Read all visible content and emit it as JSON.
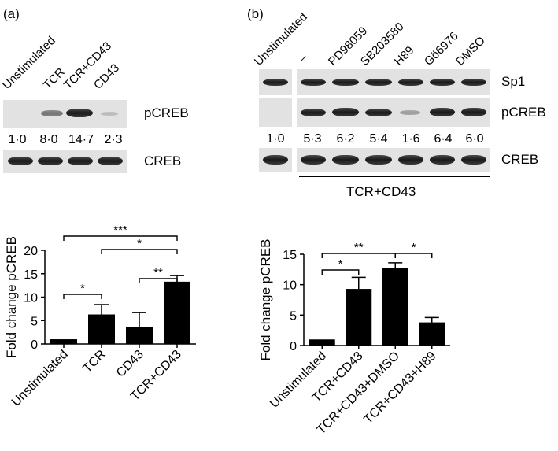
{
  "panel_a": {
    "label": "(a)",
    "lanes": [
      "Unstimulated",
      "TCR",
      "TCR+CD43",
      "CD43"
    ],
    "blot_rows": [
      "pCREB",
      "CREB"
    ],
    "quantification": [
      "1·0",
      "8·0",
      "14·7",
      "2·3"
    ]
  },
  "panel_b": {
    "label": "(b)",
    "lanes": [
      "Unstimulated",
      "–",
      "PD98059",
      "SB203580",
      "H89",
      "Gö6976",
      "DMSO"
    ],
    "blot_rows": [
      "Sp1",
      "pCREB",
      "CREB"
    ],
    "quantification": [
      "1·0",
      "5·3",
      "6·2",
      "5·4",
      "1·6",
      "6·4",
      "6·0"
    ],
    "treatment_label": "TCR+CD43"
  },
  "chart_data": [
    {
      "type": "bar",
      "categories": [
        "Unstimulated",
        "TCR",
        "CD43",
        "TCR+CD43"
      ],
      "values": [
        1.0,
        6.3,
        3.7,
        13.3
      ],
      "errors": [
        0,
        2.1,
        3.0,
        1.3
      ],
      "ylabel": "Fold change pCREB",
      "ylim": [
        0,
        20
      ],
      "yticks": [
        "0",
        "5",
        "10",
        "15",
        "20"
      ],
      "significance": [
        {
          "from": 0,
          "to": 1,
          "label": "*"
        },
        {
          "from": 2,
          "to": 3,
          "label": "**"
        },
        {
          "from": 1,
          "to": 3,
          "label": "*"
        },
        {
          "from": 0,
          "to": 3,
          "label": "***"
        }
      ]
    },
    {
      "type": "bar",
      "categories": [
        "Unstimulated",
        "TCR+CD43",
        "TCR+CD43+DMSO",
        "TCR+CD43+H89"
      ],
      "values": [
        1.0,
        9.3,
        12.7,
        3.8
      ],
      "errors": [
        0,
        1.9,
        0.9,
        0.8
      ],
      "ylabel": "Fold change pCREB",
      "ylim": [
        0,
        15
      ],
      "yticks": [
        "0",
        "5",
        "10",
        "15"
      ],
      "significance": [
        {
          "from": 0,
          "to": 1,
          "label": "*"
        },
        {
          "from": 0,
          "to": 2,
          "label": "**"
        },
        {
          "from": 2,
          "to": 3,
          "label": "*"
        }
      ]
    }
  ]
}
